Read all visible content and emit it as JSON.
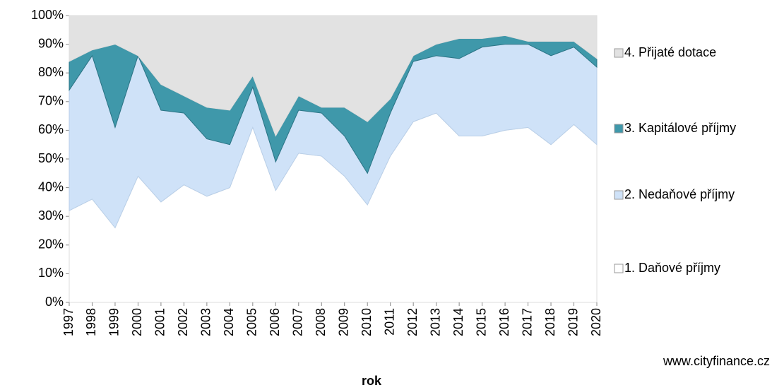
{
  "chart_data": {
    "type": "stacked_area_percent",
    "x_label": "rok",
    "source": "www.cityfinance.cz",
    "categories": [
      "1997",
      "1998",
      "1999",
      "2000",
      "2001",
      "2002",
      "2003",
      "2004",
      "2005",
      "2006",
      "2007",
      "2008",
      "2009",
      "2010",
      "2011",
      "2012",
      "2013",
      "2014",
      "2015",
      "2016",
      "2017",
      "2018",
      "2019",
      "2020"
    ],
    "series": [
      {
        "name": "1. Daňové příjmy",
        "color": "#ffffff",
        "values": [
          32,
          36,
          26,
          44,
          35,
          41,
          37,
          40,
          61,
          39,
          52,
          51,
          44,
          34,
          51,
          63,
          66,
          58,
          58,
          60,
          61,
          55,
          62,
          55
        ]
      },
      {
        "name": "2. Nedaňové příjmy",
        "color": "#cfe2f8",
        "values": [
          42,
          50,
          35,
          42,
          32,
          25,
          20,
          15,
          14,
          10,
          15,
          15,
          14,
          11,
          15,
          21,
          20,
          27,
          31,
          30,
          29,
          31,
          27,
          27
        ]
      },
      {
        "name": "3. Kapitálové příjmy",
        "color": "#3f98aa",
        "values": [
          10,
          2,
          29,
          0,
          9,
          6,
          11,
          12,
          4,
          9,
          5,
          2,
          10,
          18,
          5,
          2,
          4,
          7,
          3,
          3,
          1,
          5,
          2,
          3
        ]
      },
      {
        "name": "4. Přijaté dotace",
        "color": "#e2e2e2",
        "values": [
          16,
          12,
          10,
          14,
          24,
          28,
          32,
          33,
          21,
          42,
          28,
          32,
          32,
          37,
          29,
          14,
          10,
          8,
          8,
          7,
          9,
          9,
          9,
          15
        ]
      }
    ],
    "ylim": [
      0,
      100
    ],
    "yticks": [
      {
        "value": 0,
        "label": "0%"
      },
      {
        "value": 10,
        "label": "10%"
      },
      {
        "value": 20,
        "label": "20%"
      },
      {
        "value": 30,
        "label": "30%"
      },
      {
        "value": 40,
        "label": "40%"
      },
      {
        "value": 50,
        "label": "50%"
      },
      {
        "value": 60,
        "label": "60%"
      },
      {
        "value": 70,
        "label": "70%"
      },
      {
        "value": 80,
        "label": "80%"
      },
      {
        "value": 90,
        "label": "90%"
      },
      {
        "value": 100,
        "label": "100%"
      }
    ]
  }
}
